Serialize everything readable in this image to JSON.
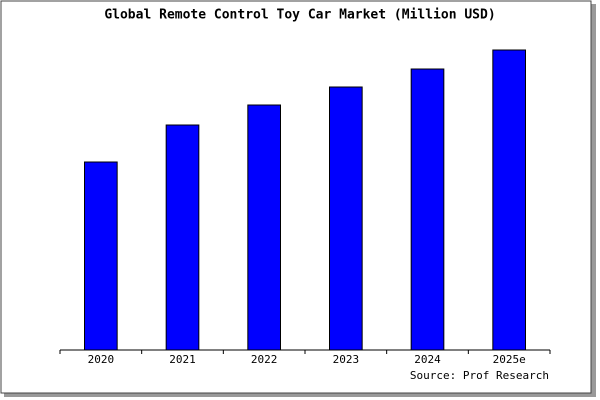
{
  "chart_data": {
    "type": "bar",
    "title": "Global Remote Control Toy Car Market (Million USD)",
    "categories": [
      "2020",
      "2021",
      "2022",
      "2023",
      "2024",
      "2025e"
    ],
    "values": [
      188,
      225,
      245,
      263,
      281,
      300
    ],
    "color": "#0000ff",
    "source": "Source: Prof Research"
  }
}
